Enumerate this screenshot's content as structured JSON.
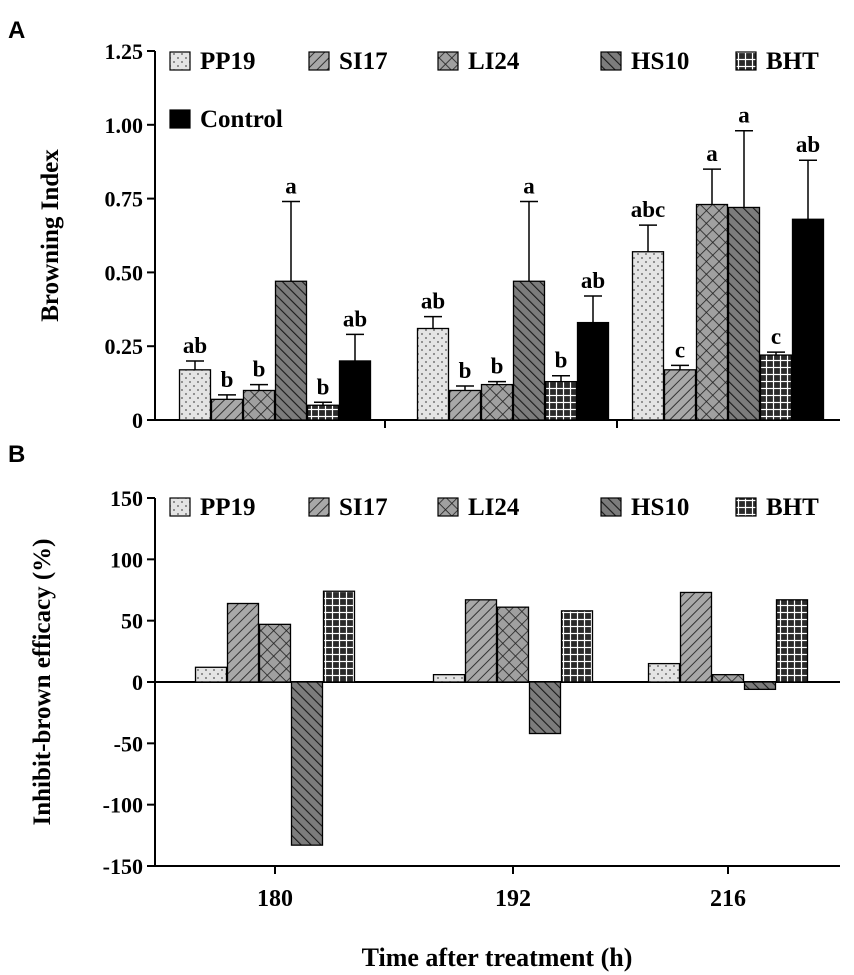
{
  "chart_data": [
    {
      "panel": "A",
      "type": "bar",
      "categories": [
        "180",
        "192",
        "216"
      ],
      "ylabel": "Browning Index",
      "ylim": [
        0,
        1.25
      ],
      "yticks": [
        "0",
        "0.25",
        "0.50",
        "0.75",
        "1.00",
        "1.25"
      ],
      "ytick_values": [
        0,
        0.25,
        0.5,
        0.75,
        1.0,
        1.25
      ],
      "series": [
        {
          "name": "PP19",
          "pattern": "dots",
          "values": [
            0.17,
            0.31,
            0.57
          ],
          "errors": [
            0.03,
            0.04,
            0.09
          ],
          "letters": [
            "ab",
            "ab",
            "abc"
          ]
        },
        {
          "name": "SI17",
          "pattern": "diag",
          "values": [
            0.07,
            0.1,
            0.17
          ],
          "errors": [
            0.015,
            0.015,
            0.015
          ],
          "letters": [
            "b",
            "b",
            "c"
          ]
        },
        {
          "name": "LI24",
          "pattern": "cross",
          "values": [
            0.1,
            0.12,
            0.73
          ],
          "errors": [
            0.02,
            0.01,
            0.12
          ],
          "letters": [
            "b",
            "b",
            "a"
          ]
        },
        {
          "name": "HS10",
          "pattern": "back",
          "values": [
            0.47,
            0.47,
            0.72
          ],
          "errors": [
            0.27,
            0.27,
            0.26
          ],
          "letters": [
            "a",
            "a",
            "a"
          ]
        },
        {
          "name": "BHT",
          "pattern": "grid",
          "values": [
            0.05,
            0.13,
            0.22
          ],
          "errors": [
            0.01,
            0.02,
            0.01
          ],
          "letters": [
            "b",
            "b",
            "c"
          ]
        },
        {
          "name": "Control",
          "pattern": "solid",
          "values": [
            0.2,
            0.33,
            0.68
          ],
          "errors": [
            0.09,
            0.09,
            0.2
          ],
          "letters": [
            "ab",
            "ab",
            "ab"
          ]
        }
      ]
    },
    {
      "panel": "B",
      "type": "bar",
      "categories": [
        "180",
        "192",
        "216"
      ],
      "ylabel": "Inhibit-brown efficacy (%)",
      "xlabel": "Time after treatment (h)",
      "ylim": [
        -150,
        150
      ],
      "yticks": [
        "150",
        "100",
        "50",
        "0",
        "-50",
        "-100",
        "-150"
      ],
      "ytick_values": [
        150,
        100,
        50,
        0,
        -50,
        -100,
        -150
      ],
      "series": [
        {
          "name": "PP19",
          "pattern": "dots",
          "values": [
            12,
            6,
            15
          ]
        },
        {
          "name": "SI17",
          "pattern": "diag",
          "values": [
            64,
            67,
            73
          ]
        },
        {
          "name": "LI24",
          "pattern": "cross",
          "values": [
            47,
            61,
            6
          ]
        },
        {
          "name": "HS10",
          "pattern": "back",
          "values": [
            -133,
            -42,
            -6
          ]
        },
        {
          "name": "BHT",
          "pattern": "grid",
          "values": [
            74,
            58,
            67
          ]
        }
      ]
    }
  ],
  "labels": {
    "panel_a": "A",
    "panel_b": "B"
  }
}
